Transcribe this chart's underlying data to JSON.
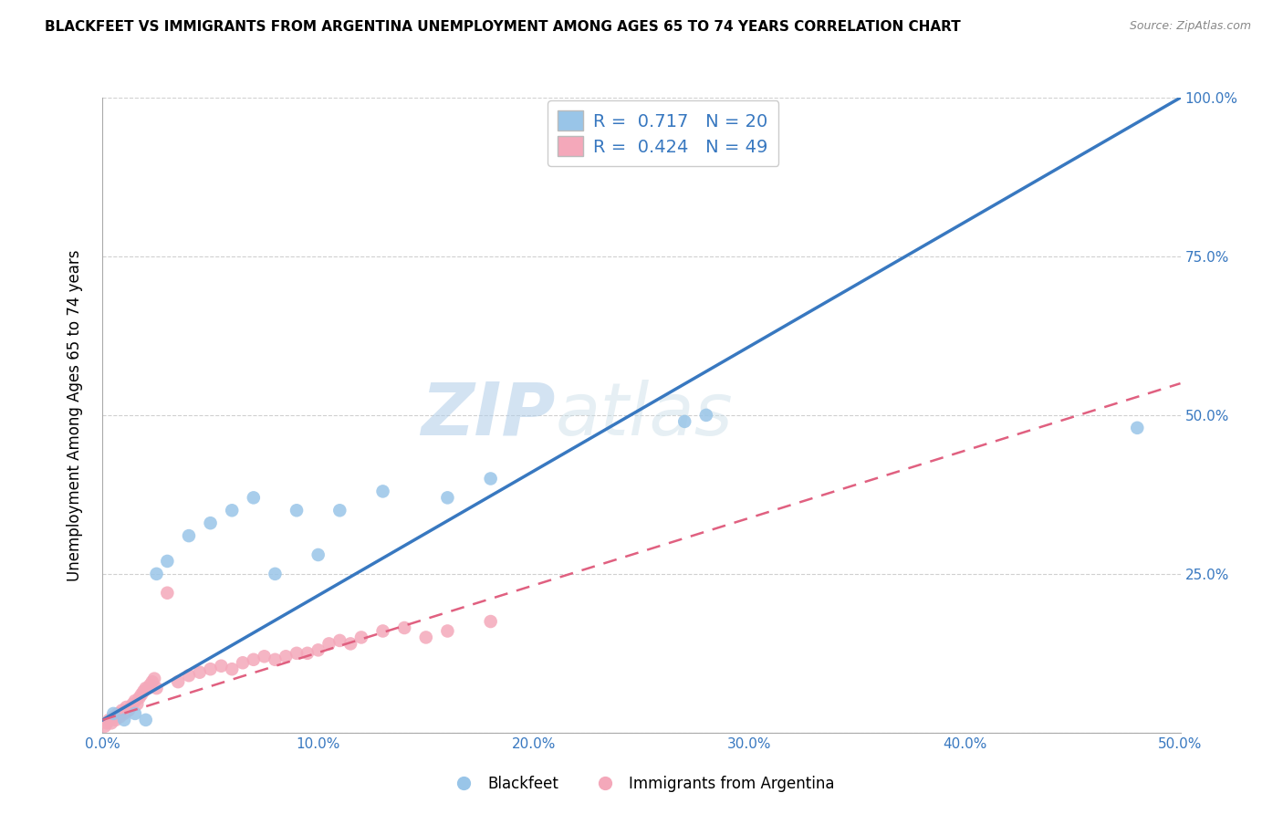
{
  "title": "BLACKFEET VS IMMIGRANTS FROM ARGENTINA UNEMPLOYMENT AMONG AGES 65 TO 74 YEARS CORRELATION CHART",
  "source": "Source: ZipAtlas.com",
  "ylabel": "Unemployment Among Ages 65 to 74 years",
  "xlim": [
    0.0,
    0.5
  ],
  "ylim": [
    0.0,
    1.0
  ],
  "xtick_labels": [
    "0.0%",
    "10.0%",
    "20.0%",
    "30.0%",
    "40.0%",
    "50.0%"
  ],
  "xtick_vals": [
    0.0,
    0.1,
    0.2,
    0.3,
    0.4,
    0.5
  ],
  "ytick_vals_right": [
    0.0,
    0.25,
    0.5,
    0.75,
    1.0
  ],
  "ytick_labels_right": [
    "",
    "25.0%",
    "50.0%",
    "75.0%",
    "100.0%"
  ],
  "blackfeet_color": "#99C5E8",
  "argentina_color": "#F4A8BA",
  "blackfeet_line_color": "#3878C0",
  "argentina_line_color": "#E06080",
  "R_blackfeet": 0.717,
  "N_blackfeet": 20,
  "R_argentina": 0.424,
  "N_argentina": 49,
  "watermark_zip": "ZIP",
  "watermark_atlas": "atlas",
  "background_color": "#ffffff",
  "grid_color": "#d0d0d0",
  "blackfeet_x": [
    0.005,
    0.01,
    0.015,
    0.02,
    0.025,
    0.03,
    0.04,
    0.05,
    0.06,
    0.07,
    0.08,
    0.09,
    0.1,
    0.11,
    0.13,
    0.16,
    0.18,
    0.27,
    0.28,
    0.48
  ],
  "blackfeet_y": [
    0.03,
    0.02,
    0.03,
    0.02,
    0.25,
    0.27,
    0.31,
    0.33,
    0.35,
    0.37,
    0.25,
    0.35,
    0.28,
    0.35,
    0.38,
    0.37,
    0.4,
    0.49,
    0.5,
    0.48
  ],
  "argentina_x": [
    0.001,
    0.002,
    0.003,
    0.004,
    0.005,
    0.006,
    0.007,
    0.008,
    0.009,
    0.01,
    0.011,
    0.012,
    0.013,
    0.014,
    0.015,
    0.016,
    0.017,
    0.018,
    0.019,
    0.02,
    0.021,
    0.022,
    0.023,
    0.024,
    0.025,
    0.03,
    0.035,
    0.04,
    0.045,
    0.05,
    0.055,
    0.06,
    0.065,
    0.07,
    0.075,
    0.08,
    0.085,
    0.09,
    0.095,
    0.1,
    0.105,
    0.11,
    0.115,
    0.12,
    0.13,
    0.14,
    0.15,
    0.16,
    0.18
  ],
  "argentina_y": [
    0.01,
    0.015,
    0.02,
    0.015,
    0.025,
    0.02,
    0.03,
    0.025,
    0.035,
    0.03,
    0.04,
    0.035,
    0.04,
    0.045,
    0.05,
    0.045,
    0.055,
    0.06,
    0.065,
    0.07,
    0.07,
    0.075,
    0.08,
    0.085,
    0.07,
    0.22,
    0.08,
    0.09,
    0.095,
    0.1,
    0.105,
    0.1,
    0.11,
    0.115,
    0.12,
    0.115,
    0.12,
    0.125,
    0.125,
    0.13,
    0.14,
    0.145,
    0.14,
    0.15,
    0.16,
    0.165,
    0.15,
    0.16,
    0.175
  ],
  "bf_trendline_x": [
    0.0,
    0.5
  ],
  "bf_trendline_y": [
    0.02,
    1.0
  ],
  "ar_trendline_x": [
    0.0,
    0.5
  ],
  "ar_trendline_y": [
    0.02,
    0.55
  ]
}
